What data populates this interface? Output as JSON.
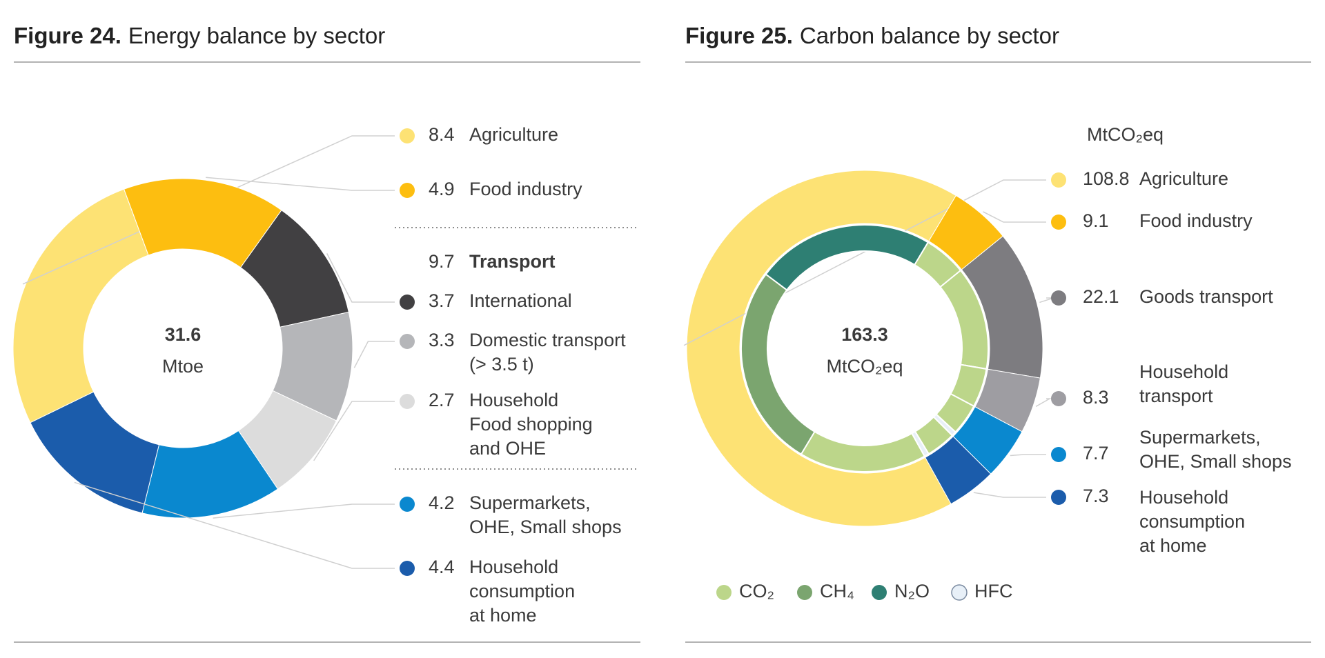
{
  "chart_data": [
    {
      "type": "donut",
      "figure": "Figure 24.",
      "title": "Energy balance by sector",
      "total": 31.6,
      "unit": "Mtoe",
      "start_angle": -116,
      "categories": [
        [
          "Agriculture"
        ],
        [
          "Food industry"
        ],
        [
          "International"
        ],
        [
          "Domestic transport",
          "(> 3.5 t)"
        ],
        [
          "Household",
          "Food shopping",
          "and OHE"
        ],
        [
          "Supermarkets,",
          "OHE, Small shops"
        ],
        [
          "Household",
          "consumption",
          "at home"
        ]
      ],
      "values": [
        8.4,
        4.9,
        3.7,
        3.3,
        2.7,
        4.2,
        4.4
      ],
      "colors": [
        "#fde274",
        "#fdbe10",
        "#414042",
        "#b5b6b9",
        "#dcdcdc",
        "#0a88cf",
        "#1b5cab"
      ],
      "groups": [
        {
          "name": "Transport",
          "value": 9.7
        }
      ]
    },
    {
      "type": "donut",
      "figure": "Figure 25.",
      "title": "Carbon balance by sector",
      "total": 163.3,
      "unit": "MtCO₂eq",
      "start_angle": 151,
      "categories": [
        [
          "Agriculture"
        ],
        [
          "Food industry"
        ],
        [
          "Goods transport"
        ],
        [
          "Household",
          "transport"
        ],
        [
          "Supermarkets,",
          "OHE, Small shops"
        ],
        [
          "Household",
          "consumption",
          "at home"
        ]
      ],
      "values": [
        108.8,
        9.1,
        22.1,
        8.3,
        7.7,
        7.3
      ],
      "colors": [
        "#fde274",
        "#fdbe10",
        "#7d7c80",
        "#9e9da2",
        "#0a88cf",
        "#1b5cab"
      ],
      "series": [
        {
          "name": "CO₂",
          "color": "#bcd68a",
          "values": [
            27.2,
            9.1,
            22.1,
            8.3,
            6.7,
            6.3
          ]
        },
        {
          "name": "CH₄",
          "color": "#7ba56f",
          "values": [
            43.5,
            null,
            null,
            null,
            null,
            null
          ]
        },
        {
          "name": "N₂O",
          "color": "#2e7f73",
          "values": [
            38.1,
            null,
            null,
            null,
            null,
            null
          ]
        },
        {
          "name": "HFC",
          "color": "#e8f0f8",
          "values": [
            null,
            null,
            null,
            null,
            1.0,
            1.0
          ]
        }
      ]
    }
  ]
}
